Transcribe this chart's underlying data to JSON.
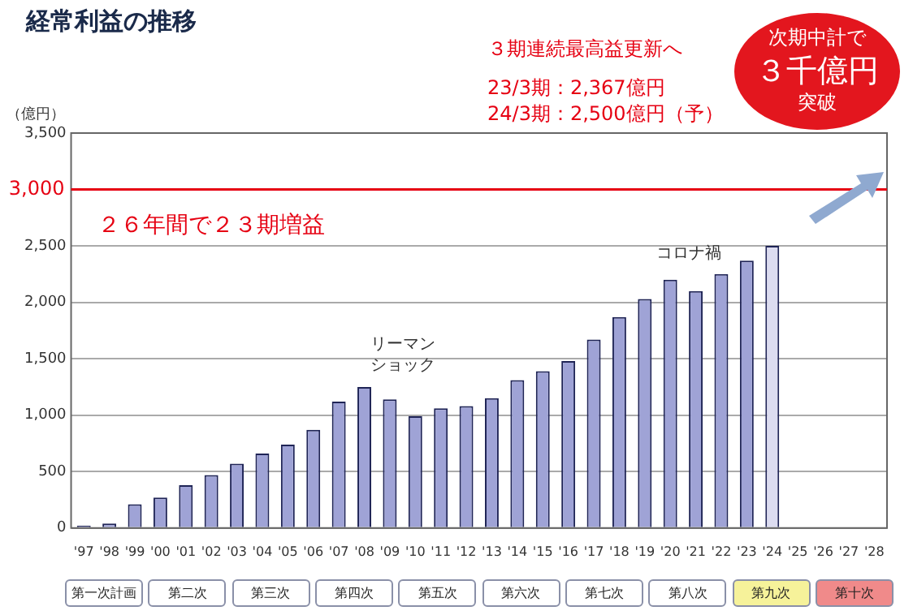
{
  "chart_data": {
    "type": "bar",
    "title": "経常利益の推移",
    "ylabel": "（億円）",
    "categories": [
      "'97",
      "'98",
      "'99",
      "'00",
      "'01",
      "'02",
      "'03",
      "'04",
      "'05",
      "'06",
      "'07",
      "'08",
      "'09",
      "'10",
      "'11",
      "'12",
      "'13",
      "'14",
      "'15",
      "'16",
      "'17",
      "'18",
      "'19",
      "'20",
      "'21",
      "'22",
      "'23",
      "'24",
      "'25",
      "'26",
      "'27",
      "'28"
    ],
    "values": [
      20,
      40,
      210,
      270,
      380,
      470,
      570,
      660,
      740,
      870,
      1120,
      1250,
      1140,
      990,
      1060,
      1080,
      1150,
      1310,
      1390,
      1480,
      1670,
      1870,
      2030,
      2200,
      2100,
      2250,
      2370,
      2500,
      null,
      null,
      null,
      null
    ],
    "colors": [
      "#9fa3d6",
      "#9fa3d6",
      "#9fa3d6",
      "#9fa3d6",
      "#9fa3d6",
      "#9fa3d6",
      "#9fa3d6",
      "#9fa3d6",
      "#9fa3d6",
      "#9fa3d6",
      "#9fa3d6",
      "#9fa3d6",
      "#9fa3d6",
      "#9fa3d6",
      "#9fa3d6",
      "#9fa3d6",
      "#9fa3d6",
      "#9fa3d6",
      "#9fa3d6",
      "#9fa3d6",
      "#9fa3d6",
      "#9fa3d6",
      "#9fa3d6",
      "#9fa3d6",
      "#9fa3d6",
      "#9fa3d6",
      "#9fa3d6",
      "#dcdcf0",
      "#9fa3d6",
      "#9fa3d6",
      "#9fa3d6",
      "#9fa3d6"
    ],
    "ylim": [
      0,
      3500
    ],
    "yticks": [
      0,
      {
        "value": 500,
        "label": "500"
      },
      {
        "value": 1000,
        "label": "1,000"
      },
      {
        "value": 1500,
        "label": "1,500"
      },
      {
        "value": 2000,
        "label": "2,000"
      },
      {
        "value": 2500,
        "label": "2,500"
      },
      {
        "value": 3000,
        "label": null
      },
      {
        "value": 3500,
        "label": "3,500"
      }
    ],
    "grid": "y",
    "ref_lines": [
      {
        "axis": "y",
        "value": 3000,
        "label": "3,000",
        "color": "#e60012"
      }
    ],
    "annotations": [
      "３期連続最高益更新へ",
      "23/3期：2,367億円",
      "24/3期：2,500億円（予）",
      "次期中計で",
      "３千億円",
      "突破",
      "２６年間で２３期増益",
      "リーマンショック",
      "コロナ禍",
      "第一次計画",
      "第二次",
      "第三次",
      "第四次",
      "第五次",
      "第六次",
      "第七次",
      "第八次",
      "第九次",
      "第十次"
    ]
  }
}
